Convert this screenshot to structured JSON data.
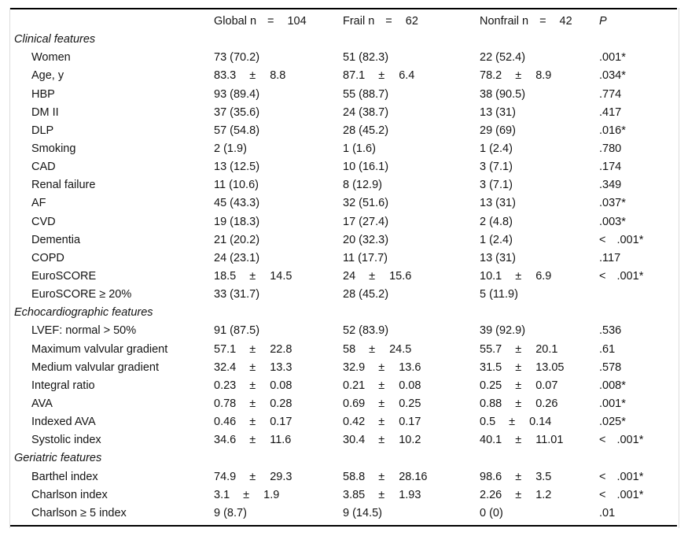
{
  "table": {
    "header": {
      "p": "P",
      "groups": [
        {
          "key": "global",
          "name": "Global n",
          "eq": "=",
          "n": "104"
        },
        {
          "key": "frail",
          "name": "Frail n",
          "eq": "=",
          "n": "62"
        },
        {
          "key": "nonfrail",
          "name": "Nonfrail n",
          "eq": "=",
          "n": "42"
        }
      ]
    },
    "pm_symbol": "±",
    "sections": [
      {
        "title": "Clinical features",
        "rows": [
          {
            "label": "Women",
            "cells": [
              {
                "text": "73 (70.2)"
              },
              {
                "text": "51 (82.3)"
              },
              {
                "text": "22 (52.4)"
              }
            ],
            "p": ".001*"
          },
          {
            "label": "Age, y",
            "cells": [
              {
                "mean": "83.3",
                "pm": "±",
                "sd": "8.8"
              },
              {
                "mean": "87.1",
                "pm": "±",
                "sd": "6.4"
              },
              {
                "mean": "78.2",
                "pm": "±",
                "sd": "8.9"
              }
            ],
            "p": ".034*"
          },
          {
            "label": "HBP",
            "cells": [
              {
                "text": "93 (89.4)"
              },
              {
                "text": "55 (88.7)"
              },
              {
                "text": "38 (90.5)"
              }
            ],
            "p": ".774"
          },
          {
            "label": "DM II",
            "cells": [
              {
                "text": "37 (35.6)"
              },
              {
                "text": "24 (38.7)"
              },
              {
                "text": "13 (31)"
              }
            ],
            "p": ".417"
          },
          {
            "label": "DLP",
            "cells": [
              {
                "text": "57 (54.8)"
              },
              {
                "text": "28 (45.2)"
              },
              {
                "text": "29 (69)"
              }
            ],
            "p": ".016*"
          },
          {
            "label": "Smoking",
            "cells": [
              {
                "text": "2 (1.9)"
              },
              {
                "text": "1 (1.6)"
              },
              {
                "text": "1 (2.4)"
              }
            ],
            "p": ".780"
          },
          {
            "label": "CAD",
            "cells": [
              {
                "text": "13 (12.5)"
              },
              {
                "text": "10 (16.1)"
              },
              {
                "text": "3 (7.1)"
              }
            ],
            "p": ".174"
          },
          {
            "label": "Renal failure",
            "cells": [
              {
                "text": "11 (10.6)"
              },
              {
                "text": "8 (12.9)"
              },
              {
                "text": "3 (7.1)"
              }
            ],
            "p": ".349"
          },
          {
            "label": "AF",
            "cells": [
              {
                "text": "45 (43.3)"
              },
              {
                "text": "32 (51.6)"
              },
              {
                "text": "13 (31)"
              }
            ],
            "p": ".037*"
          },
          {
            "label": "CVD",
            "cells": [
              {
                "text": "19 (18.3)"
              },
              {
                "text": "17 (27.4)"
              },
              {
                "text": "2 (4.8)"
              }
            ],
            "p": ".003*"
          },
          {
            "label": "Dementia",
            "cells": [
              {
                "text": "21 (20.2)"
              },
              {
                "text": "20 (32.3)"
              },
              {
                "text": "1 (2.4)"
              }
            ],
            "p": "< .001*"
          },
          {
            "label": "COPD",
            "cells": [
              {
                "text": "24 (23.1)"
              },
              {
                "text": "11 (17.7)"
              },
              {
                "text": "13 (31)"
              }
            ],
            "p": ".117"
          },
          {
            "label": "EuroSCORE",
            "cells": [
              {
                "mean": "18.5",
                "pm": "±",
                "sd": "14.5"
              },
              {
                "mean": "24",
                "pm": "±",
                "sd": "15.6"
              },
              {
                "mean": "10.1",
                "pm": "±",
                "sd": "6.9"
              }
            ],
            "p": "< .001*"
          },
          {
            "label": "EuroSCORE ≥ 20%",
            "cells": [
              {
                "text": "33 (31.7)"
              },
              {
                "text": "28 (45.2)"
              },
              {
                "text": "5 (11.9)"
              }
            ],
            "p": ""
          }
        ]
      },
      {
        "title": "Echocardiographic features",
        "rows": [
          {
            "label": "LVEF: normal > 50%",
            "cells": [
              {
                "text": "91 (87.5)"
              },
              {
                "text": "52 (83.9)"
              },
              {
                "text": "39 (92.9)"
              }
            ],
            "p": ".536"
          },
          {
            "label": "Maximum valvular gradient",
            "cells": [
              {
                "mean": "57.1",
                "pm": "±",
                "sd": "22.8"
              },
              {
                "mean": "58",
                "pm": "±",
                "sd": "24.5"
              },
              {
                "mean": "55.7",
                "pm": "±",
                "sd": "20.1"
              }
            ],
            "p": ".61"
          },
          {
            "label": "Medium valvular gradient",
            "cells": [
              {
                "mean": "32.4",
                "pm": "±",
                "sd": "13.3"
              },
              {
                "mean": "32.9",
                "pm": "±",
                "sd": "13.6"
              },
              {
                "mean": "31.5",
                "pm": "±",
                "sd": "13.05"
              }
            ],
            "p": ".578"
          },
          {
            "label": "Integral ratio",
            "cells": [
              {
                "mean": "0.23",
                "pm": "±",
                "sd": "0.08"
              },
              {
                "mean": "0.21",
                "pm": "±",
                "sd": "0.08"
              },
              {
                "mean": "0.25",
                "pm": "±",
                "sd": "0.07"
              }
            ],
            "p": ".008*"
          },
          {
            "label": "AVA",
            "cells": [
              {
                "mean": "0.78",
                "pm": "±",
                "sd": "0.28"
              },
              {
                "mean": "0.69",
                "pm": "±",
                "sd": "0.25"
              },
              {
                "mean": "0.88",
                "pm": "±",
                "sd": "0.26"
              }
            ],
            "p": ".001*"
          },
          {
            "label": "Indexed AVA",
            "cells": [
              {
                "mean": "0.46",
                "pm": "±",
                "sd": "0.17"
              },
              {
                "mean": "0.42",
                "pm": "±",
                "sd": "0.17"
              },
              {
                "mean": "0.5",
                "pm": "±",
                "sd": "0.14"
              }
            ],
            "p": ".025*"
          },
          {
            "label": "Systolic index",
            "cells": [
              {
                "mean": "34.6",
                "pm": "±",
                "sd": "11.6"
              },
              {
                "mean": "30.4",
                "pm": "±",
                "sd": "10.2"
              },
              {
                "mean": "40.1",
                "pm": "±",
                "sd": "11.01"
              }
            ],
            "p": "< .001*"
          }
        ]
      },
      {
        "title": "Geriatric features",
        "rows": [
          {
            "label": "Barthel index",
            "cells": [
              {
                "mean": "74.9",
                "pm": "±",
                "sd": "29.3"
              },
              {
                "mean": "58.8",
                "pm": "±",
                "sd": "28.16"
              },
              {
                "mean": "98.6",
                "pm": "±",
                "sd": "3.5"
              }
            ],
            "p": "< .001*"
          },
          {
            "label": "Charlson index",
            "cells": [
              {
                "mean": "3.1",
                "pm": "±",
                "sd": "1.9"
              },
              {
                "mean": "3.85",
                "pm": "±",
                "sd": "1.93"
              },
              {
                "mean": "2.26",
                "pm": "±",
                "sd": "1.2"
              }
            ],
            "p": "< .001*"
          },
          {
            "label": "Charlson ≥ 5 index",
            "cells": [
              {
                "text": "9 (8.7)"
              },
              {
                "text": "9 (14.5)"
              },
              {
                "text": "0 (0)"
              }
            ],
            "p": ".01"
          }
        ]
      }
    ]
  }
}
